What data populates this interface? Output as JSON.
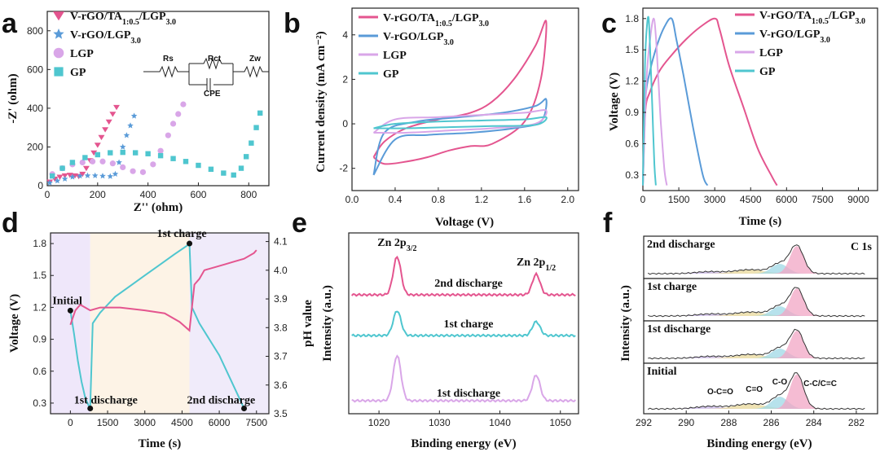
{
  "colors": {
    "pink": "#e4558f",
    "blue": "#5a9bd8",
    "lilac": "#d9a6e8",
    "cyan": "#4fc6cf",
    "green": "#51cfb0"
  },
  "chart_data": [
    {
      "panel": "a",
      "type": "scatter",
      "xlabel": "Z'' (ohm)",
      "ylabel": "-Z' (ohm)",
      "xlim": [
        0,
        880
      ],
      "ylim": [
        0,
        900
      ],
      "xticks": [
        "0",
        "200",
        "400",
        "600",
        "800"
      ],
      "yticks": [
        "0",
        "200",
        "400",
        "600",
        "800"
      ],
      "circuit_labels": [
        "Rs",
        "Rct",
        "CPE",
        "Zw"
      ],
      "series": [
        {
          "name": "V-rGO/TA",
          "sub1": "1:0.5",
          "mid": "/LGP",
          "sub2": "3.0",
          "marker": "triangle",
          "color": "pink",
          "x": [
            10,
            30,
            50,
            70,
            90,
            110,
            125,
            140,
            155,
            170,
            185,
            200,
            215,
            230,
            245,
            260,
            275
          ],
          "y": [
            20,
            35,
            45,
            52,
            55,
            52,
            48,
            60,
            90,
            130,
            170,
            210,
            250,
            290,
            330,
            370,
            405
          ]
        },
        {
          "name": "V-rGO/LGP",
          "sub2": "3.0",
          "marker": "star",
          "color": "blue",
          "x": [
            10,
            40,
            70,
            100,
            130,
            160,
            190,
            220,
            250,
            270,
            285,
            300,
            315,
            330,
            345
          ],
          "y": [
            15,
            25,
            35,
            45,
            50,
            52,
            52,
            50,
            48,
            60,
            120,
            200,
            260,
            310,
            360
          ]
        },
        {
          "name": "LGP",
          "marker": "circle",
          "color": "lilac",
          "x": [
            20,
            60,
            100,
            140,
            180,
            220,
            260,
            300,
            340,
            380,
            420,
            450,
            480,
            500,
            520,
            540
          ],
          "y": [
            60,
            90,
            110,
            120,
            125,
            125,
            115,
            95,
            75,
            70,
            110,
            180,
            260,
            320,
            370,
            420
          ]
        },
        {
          "name": "GP",
          "marker": "square",
          "color": "cyan",
          "x": [
            20,
            60,
            100,
            150,
            200,
            250,
            300,
            350,
            400,
            450,
            500,
            550,
            600,
            650,
            700,
            740,
            770,
            790,
            810,
            830,
            845
          ],
          "y": [
            50,
            90,
            120,
            145,
            160,
            170,
            172,
            170,
            165,
            155,
            140,
            125,
            105,
            85,
            65,
            55,
            90,
            150,
            220,
            300,
            375
          ]
        }
      ]
    },
    {
      "panel": "b",
      "type": "line",
      "xlabel": "Voltage (V)",
      "ylabel": "Current density (mA cm⁻²)",
      "xlim": [
        0,
        2.1
      ],
      "ylim": [
        -3,
        5.2
      ],
      "xticks": [
        "0.0",
        "0.4",
        "0.8",
        "1.2",
        "1.6",
        "2.0"
      ],
      "yticks": [
        "-2",
        "0",
        "2",
        "4"
      ],
      "series": [
        {
          "name": "V-rGO/TA",
          "sub1": "1:0.5",
          "mid": "/LGP",
          "sub2": "3.0",
          "color": "pink",
          "x": [
            0.2,
            0.3,
            0.5,
            0.8,
            1.1,
            1.3,
            1.5,
            1.7,
            1.8,
            1.75,
            1.6,
            1.3,
            1.1,
            0.9,
            0.7,
            0.5,
            0.3,
            0.2
          ],
          "y": [
            -1.5,
            -0.8,
            -0.2,
            0.2,
            0.5,
            1.0,
            2.0,
            3.5,
            4.6,
            2.0,
            0.1,
            -0.9,
            -1.0,
            -1.2,
            -1.5,
            -1.7,
            -1.8,
            -1.5
          ]
        },
        {
          "name": "V-rGO/LGP",
          "sub2": "3.0",
          "color": "blue",
          "x": [
            0.2,
            0.3,
            0.6,
            1.0,
            1.4,
            1.7,
            1.8,
            1.75,
            1.5,
            1.1,
            0.7,
            0.4,
            0.2
          ],
          "y": [
            -2.3,
            -0.4,
            0.1,
            0.3,
            0.5,
            0.8,
            1.1,
            0.1,
            -0.2,
            -0.4,
            -0.5,
            -0.7,
            -2.3
          ]
        },
        {
          "name": "LGP",
          "color": "lilac",
          "x": [
            0.2,
            0.4,
            0.8,
            1.2,
            1.6,
            1.8,
            1.7,
            1.3,
            0.9,
            0.5,
            0.2
          ],
          "y": [
            -0.4,
            0.2,
            0.3,
            0.4,
            0.5,
            0.6,
            0.0,
            -0.2,
            -0.3,
            -0.4,
            -0.4
          ]
        },
        {
          "name": "GP",
          "color": "cyan",
          "x": [
            0.2,
            0.4,
            0.8,
            1.2,
            1.6,
            1.8,
            1.7,
            1.3,
            0.9,
            0.5,
            0.2
          ],
          "y": [
            -0.2,
            0.0,
            0.1,
            0.15,
            0.2,
            0.3,
            -0.05,
            -0.1,
            -0.15,
            -0.2,
            -0.2
          ]
        }
      ]
    },
    {
      "panel": "c",
      "type": "line",
      "xlabel": "Time (s)",
      "ylabel": "Voltage (V)",
      "xlim": [
        0,
        9800
      ],
      "ylim": [
        0.15,
        1.9
      ],
      "xticks": [
        "0",
        "1500",
        "3000",
        "4500",
        "6000",
        "7500",
        "9000"
      ],
      "yticks": [
        "0.3",
        "0.6",
        "0.9",
        "1.2",
        "1.5",
        "1.8"
      ],
      "series": [
        {
          "name": "V-rGO/TA",
          "sub1": "1:0.5",
          "mid": "/LGP",
          "sub2": "3.0",
          "color": "pink",
          "x": [
            0,
            100,
            300,
            700,
            1200,
            1800,
            2400,
            3000,
            3200,
            3600,
            4200,
            4800,
            5400,
            5600
          ],
          "y": [
            0.2,
            0.9,
            1.1,
            1.3,
            1.45,
            1.6,
            1.72,
            1.8,
            1.7,
            1.35,
            0.95,
            0.55,
            0.28,
            0.2
          ]
        },
        {
          "name": "V-rGO/LGP",
          "sub2": "3.0",
          "color": "blue",
          "x": [
            0,
            100,
            300,
            600,
            900,
            1200,
            1400,
            1700,
            2100,
            2500,
            2700
          ],
          "y": [
            0.2,
            1.0,
            1.3,
            1.55,
            1.72,
            1.8,
            1.6,
            1.25,
            0.75,
            0.3,
            0.2
          ]
        },
        {
          "name": "LGP",
          "color": "lilac",
          "x": [
            0,
            150,
            300,
            450,
            550,
            650,
            750,
            900,
            1000
          ],
          "y": [
            0.2,
            1.2,
            1.6,
            1.8,
            1.6,
            1.2,
            0.8,
            0.35,
            0.2
          ]
        },
        {
          "name": "GP",
          "color": "cyan",
          "x": [
            0,
            80,
            160,
            240,
            320,
            400,
            480,
            540
          ],
          "y": [
            0.2,
            1.3,
            1.7,
            1.8,
            1.4,
            0.9,
            0.4,
            0.2
          ]
        }
      ]
    },
    {
      "panel": "d",
      "type": "line",
      "xlabel": "Time (s)",
      "ylabel": "Voltage (V)",
      "y2label": "pH value",
      "xlim": [
        -800,
        8000
      ],
      "ylim": [
        0.2,
        1.9
      ],
      "y2lim": [
        3.5,
        4.13
      ],
      "xticks": [
        "0",
        "1500",
        "3000",
        "4500",
        "6000",
        "7500"
      ],
      "yticks": [
        "0.3",
        "0.6",
        "0.9",
        "1.2",
        "1.5",
        "1.8"
      ],
      "y2ticks": [
        "3.5",
        "3.6",
        "3.7",
        "3.8",
        "3.9",
        "4.0",
        "4.1"
      ],
      "bands": [
        {
          "x0": -800,
          "x1": 800,
          "color": "#efe7fa"
        },
        {
          "x0": 800,
          "x1": 4800,
          "color": "#fdf3e6"
        },
        {
          "x0": 4800,
          "x1": 8000,
          "color": "#f0ebfa"
        }
      ],
      "annotations": [
        {
          "text": "Initial",
          "x": 0,
          "y": 1.17
        },
        {
          "text": "1st discharge",
          "x": 800,
          "y": 0.25
        },
        {
          "text": "1st charge",
          "x": 4800,
          "y": 1.8
        },
        {
          "text": "2nd discharge",
          "x": 7000,
          "y": 0.25
        }
      ],
      "series": [
        {
          "name": "Voltage",
          "axis": "left",
          "color": "cyan",
          "x": [
            0,
            150,
            300,
            450,
            600,
            750,
            800,
            900,
            1200,
            1800,
            2400,
            3000,
            3600,
            4200,
            4700,
            4800,
            4900,
            5200,
            5600,
            6000,
            6400,
            6800,
            7000
          ],
          "y": [
            1.17,
            0.95,
            0.7,
            0.5,
            0.35,
            0.27,
            0.25,
            1.05,
            1.15,
            1.3,
            1.4,
            1.5,
            1.6,
            1.7,
            1.78,
            1.8,
            1.2,
            1.05,
            0.9,
            0.75,
            0.55,
            0.35,
            0.25
          ]
        },
        {
          "name": "pH",
          "axis": "right",
          "color": "pink",
          "x": [
            0,
            200,
            400,
            600,
            800,
            1200,
            2000,
            3000,
            3800,
            4400,
            4800,
            5000,
            5200,
            5400,
            5800,
            6200,
            6600,
            7000,
            7400,
            7500
          ],
          "y": [
            3.81,
            3.86,
            3.88,
            3.87,
            3.86,
            3.87,
            3.87,
            3.86,
            3.85,
            3.82,
            3.79,
            3.95,
            3.97,
            4.0,
            4.01,
            4.02,
            4.03,
            4.04,
            4.06,
            4.07
          ]
        }
      ]
    },
    {
      "panel": "e",
      "type": "line",
      "xlabel": "Binding energy (eV)",
      "ylabel": "Intensity (a.u.)",
      "xlim": [
        1015,
        1053
      ],
      "xticks": [
        "1020",
        "1030",
        "1040",
        "1050"
      ],
      "peaks": [
        {
          "label": "Zn 2p",
          "sub": "3/2",
          "x": 1023
        },
        {
          "label": "Zn 2p",
          "sub": "1/2",
          "x": 1046
        }
      ],
      "series": [
        {
          "name": "2nd discharge",
          "color": "pink",
          "baseline": 0.78,
          "peak1": 0.52,
          "peak2": 0.28
        },
        {
          "name": "1st charge",
          "color": "cyan",
          "baseline": 0.47,
          "peak1": 0.34,
          "peak2": 0.19
        },
        {
          "name": "1st discharge",
          "color": "lilac",
          "baseline": 0.08,
          "peak1": 0.62,
          "peak2": 0.35
        }
      ]
    },
    {
      "panel": "f",
      "type": "line",
      "xlabel": "Binding energy (eV)",
      "ylabel": "Intensity (a.u.)",
      "title": "C 1s",
      "xlim": [
        292,
        281
      ],
      "xticks": [
        "292",
        "290",
        "288",
        "286",
        "284",
        "282"
      ],
      "components": [
        {
          "label": "O-C=O",
          "x": 288.9,
          "color": "#c8b6e8"
        },
        {
          "label": "C=O",
          "x": 287.0,
          "color": "#e8d89a"
        },
        {
          "label": "C-O",
          "x": 285.6,
          "color": "#9fd8e6"
        },
        {
          "label": "C-C/C=C",
          "x": 284.8,
          "color": "#f2a6c4"
        }
      ],
      "series": [
        {
          "name": "2nd discharge"
        },
        {
          "name": "1st charge"
        },
        {
          "name": "1st discharge"
        },
        {
          "name": "Initial"
        }
      ]
    }
  ]
}
